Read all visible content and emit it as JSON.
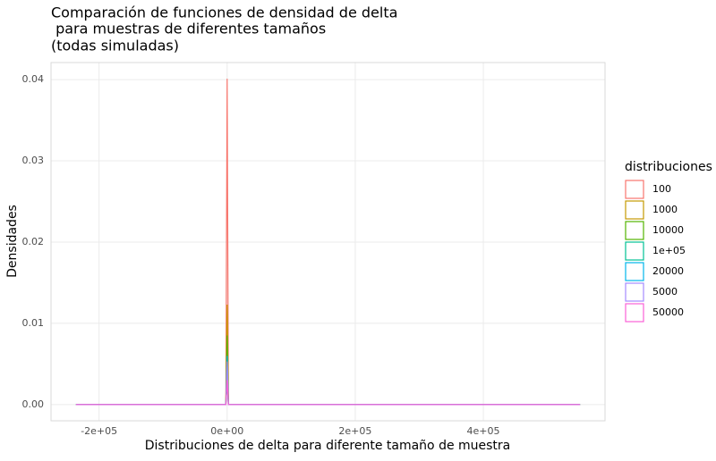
{
  "chart_data": {
    "type": "line",
    "title": [
      "Comparación de funciones de densidad de delta",
      " para muestras de diferentes tamaños",
      "(todas simuladas)"
    ],
    "x_label": "Distribuciones de delta para diferente tamaño de muestra",
    "y_label": "Densidades",
    "legend_title": "distribuciones",
    "legend_position": "right",
    "grid": true,
    "x": [
      -236000,
      -5000,
      -2000,
      0,
      2000,
      5000,
      551000
    ],
    "xlim": [
      -275000,
      590000
    ],
    "xticks": [
      {
        "value": -200000,
        "label": "-2e+05"
      },
      {
        "value": 0,
        "label": "0e+00"
      },
      {
        "value": 200000,
        "label": "2e+05"
      },
      {
        "value": 400000,
        "label": "4e+05"
      }
    ],
    "ylim": [
      -0.002,
      0.0421
    ],
    "yticks": [
      {
        "value": 0,
        "label": "0.00"
      },
      0.01,
      0.02,
      0.03,
      0.04
    ],
    "series": [
      {
        "name": "100",
        "color": "#F8766D",
        "values": [
          0,
          0,
          0,
          0.0401,
          0,
          0,
          0
        ]
      },
      {
        "name": "1000",
        "color": "#C49A00",
        "values": [
          0,
          0,
          0,
          0.0123,
          0,
          0,
          0
        ]
      },
      {
        "name": "10000",
        "color": "#53B400",
        "values": [
          0,
          0,
          0,
          0.0085,
          0,
          0,
          0
        ]
      },
      {
        "name": "1e+05",
        "color": "#00C094",
        "values": [
          0,
          0,
          0,
          0.0025,
          0,
          0,
          0
        ]
      },
      {
        "name": "20000",
        "color": "#00B6EB",
        "values": [
          0,
          0,
          0,
          0.006,
          0,
          0,
          0
        ]
      },
      {
        "name": "5000",
        "color": "#A58AFF",
        "values": [
          0,
          0,
          0,
          0.0053,
          0,
          0,
          0
        ]
      },
      {
        "name": "50000",
        "color": "#FB61D7",
        "values": [
          0,
          0,
          0,
          0.003,
          0,
          0,
          0
        ]
      }
    ]
  }
}
